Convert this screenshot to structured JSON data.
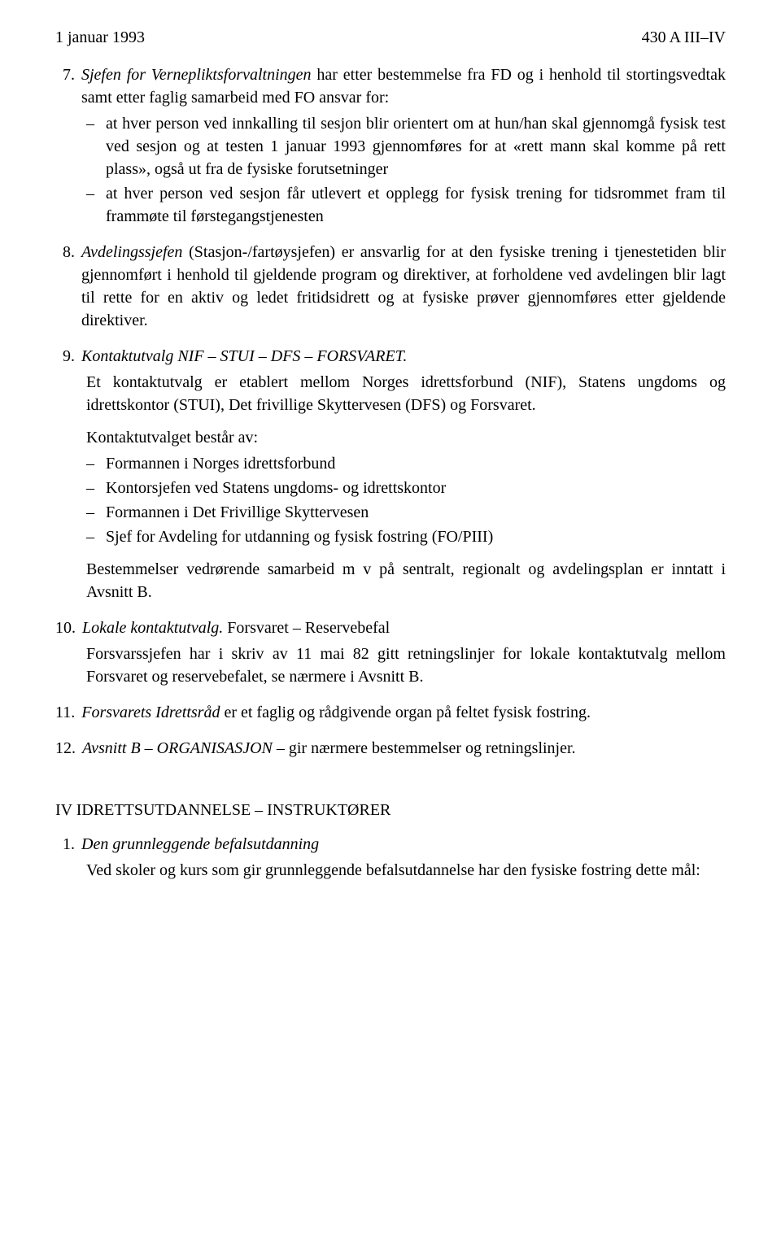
{
  "header": {
    "left": "1 januar 1993",
    "right": "430 A III–IV"
  },
  "items": [
    {
      "number": "7.",
      "lead_italic": "Sjefen for Vernepliktsforvaltningen",
      "lead_rest": " har etter bestemmelse fra FD og i henhold til stortingsvedtak samt etter faglig samarbeid med FO ansvar for:",
      "subs": [
        "at hver person ved innkalling til sesjon blir orientert om at hun/han skal gjennomgå fysisk test ved sesjon og at testen 1 januar 1993 gjennomføres for at «rett mann skal komme på rett plass», også ut fra de fysiske forutsetninger",
        "at hver person ved sesjon får utlevert et opplegg for fysisk trening for tidsrommet fram til frammøte til førstegangstjenesten"
      ]
    },
    {
      "number": "8.",
      "lead_italic": "Avdelingssjefen",
      "lead_rest": " (Stasjon-/fartøysjefen) er ansvarlig for at den fysiske trening i tjenestetiden blir gjennomført i henhold til gjeldende program og direktiver, at forholdene ved avdelingen blir lagt til rette for en aktiv og ledet fritidsidrett og at fysiske prøver gjennomføres etter gjeldende direktiver."
    },
    {
      "number": "9.",
      "lead_italic": "Kontaktutvalg NIF – STUI – DFS – FORSVARET.",
      "paras": [
        "Et kontaktutvalg er etablert mellom Norges idrettsforbund (NIF), Statens ungdoms og idrettskontor (STUI), Det frivillige Skyttervesen (DFS) og Forsvaret."
      ],
      "para2_lead": "Kontaktutvalget består av:",
      "subs": [
        "Formannen i Norges idrettsforbund",
        "Kontorsjefen ved Statens ungdoms- og idrettskontor",
        "Formannen i Det Frivillige Skyttervesen",
        "Sjef for Avdeling for utdanning og fysisk fostring (FO/PIII)"
      ],
      "tail_para": "Bestemmelser vedrørende samarbeid m v på sentralt, regionalt og avdelingsplan er inntatt i Avsnitt B."
    },
    {
      "number": "10.",
      "lead_italic": "Lokale kontaktutvalg.",
      "lead_rest": " Forsvaret – Reservebefal",
      "paras": [
        "Forsvarssjefen har i skriv av 11 mai 82 gitt retningslinjer for lokale kontaktutvalg mellom Forsvaret og reservebefalet, se nærmere i Avsnitt B."
      ]
    },
    {
      "number": "11.",
      "lead_italic": "Forsvarets Idrettsråd",
      "lead_rest": " er et faglig og rådgivende organ på feltet fysisk fostring."
    },
    {
      "number": "12.",
      "lead_italic": "Avsnitt B – ORGANISASJON",
      "lead_rest": " – gir nærmere bestemmelser og retningslinjer."
    }
  ],
  "section": {
    "heading": "IV  IDRETTSUTDANNELSE – INSTRUKTØRER",
    "item": {
      "number": "1.",
      "lead_italic": "Den grunnleggende befalsutdanning",
      "para": "Ved skoler og kurs som gir grunnleggende befalsutdannelse har den fysiske fostring dette mål:"
    }
  }
}
